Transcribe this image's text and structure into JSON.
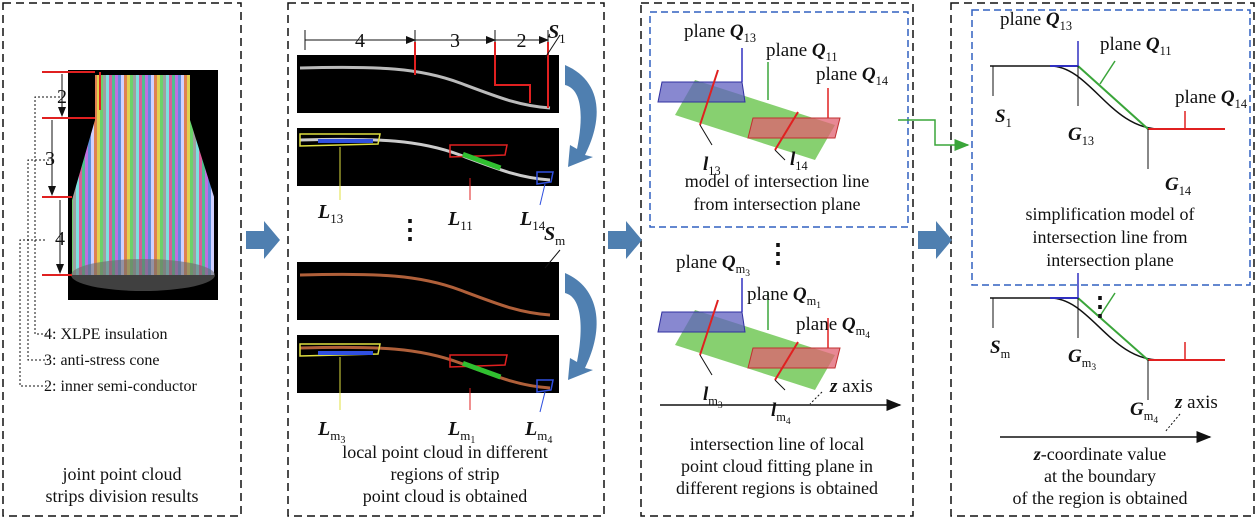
{
  "panel1": {
    "dims": [
      "2",
      "3",
      "4"
    ],
    "legend": [
      "4: XLPE insulation",
      "3: anti-stress cone",
      "2: inner semi-conductor"
    ],
    "caption": [
      "joint point cloud",
      "strips division results"
    ]
  },
  "panel2": {
    "dims": [
      "4",
      "3",
      "2"
    ],
    "labels": [
      {
        "v": "S",
        "sub": "1"
      },
      {
        "v": "L",
        "sub": "13"
      },
      {
        "v": "L",
        "sub": "11"
      },
      {
        "v": "L",
        "sub": "14"
      },
      {
        "v": "S",
        "sub": "m"
      },
      {
        "v": "L",
        "sub": "m",
        "subsub": "3"
      },
      {
        "v": "L",
        "sub": "m",
        "subsub": "1"
      },
      {
        "v": "L",
        "sub": "m",
        "subsub": "4"
      }
    ],
    "ellipsis": "⋮",
    "caption": [
      "local point cloud in different",
      "regions of strip",
      "point cloud is obtained"
    ]
  },
  "panel3": {
    "labels": [
      {
        "pre": "plane ",
        "v": "Q",
        "sub": "13"
      },
      {
        "pre": "plane ",
        "v": "Q",
        "sub": "11"
      },
      {
        "pre": "plane ",
        "v": "Q",
        "sub": "14"
      },
      {
        "v": "l",
        "sub": "13"
      },
      {
        "v": "l",
        "sub": "14"
      },
      {
        "pre": "plane ",
        "v": "Q",
        "sub": "m",
        "subsub": "3"
      },
      {
        "pre": "plane ",
        "v": "Q",
        "sub": "m",
        "subsub": "1"
      },
      {
        "pre": "plane ",
        "v": "Q",
        "sub": "m",
        "subsub": "4"
      },
      {
        "v": "l",
        "sub": "m",
        "subsub": "3"
      },
      {
        "v": "l",
        "sub": "m",
        "subsub": "4"
      },
      {
        "v": "z",
        "t": " axis"
      }
    ],
    "ellipsis": "⋮",
    "box_caption": [
      "model of intersection line",
      "from intersection plane"
    ],
    "caption": [
      "intersection line of local",
      "point cloud fitting plane in",
      "different regions is obtained"
    ]
  },
  "panel4": {
    "labels": [
      {
        "pre": "plane ",
        "v": "Q",
        "sub": "13"
      },
      {
        "pre": "plane ",
        "v": "Q",
        "sub": "11"
      },
      {
        "v": "S",
        "sub": "1"
      },
      {
        "v": "G",
        "sub": "13"
      },
      {
        "pre": "plane ",
        "v": "Q",
        "sub": "14"
      },
      {
        "v": "G",
        "sub": "14"
      },
      {
        "v": "S",
        "sub": "m"
      },
      {
        "v": "G",
        "sub": "m",
        "subsub": "3"
      },
      {
        "v": "G",
        "sub": "m",
        "subsub": "4"
      },
      {
        "v": "z",
        "t": " axis"
      }
    ],
    "ellipsis": "⋮",
    "box_caption": [
      "simplification model of",
      "intersection line from",
      "intersection plane"
    ],
    "caption": [
      {
        "v": "z",
        "t": "-coordinate value"
      },
      "at the boundary",
      "of the region is obtained"
    ]
  }
}
